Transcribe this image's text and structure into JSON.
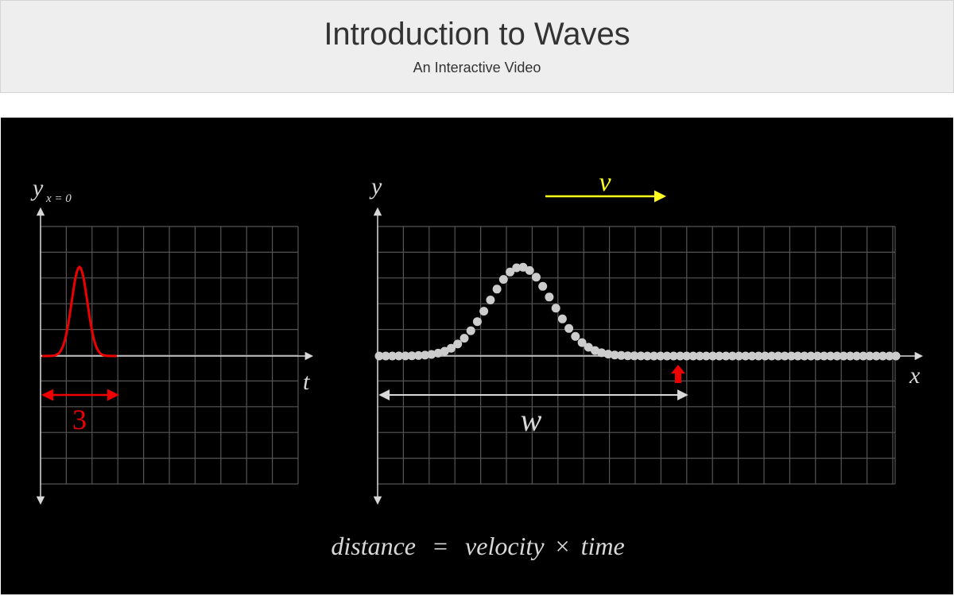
{
  "header": {
    "title": "Introduction to Waves",
    "subtitle": "An Interactive Video"
  },
  "left_plot": {
    "y_label": "y",
    "y_subscript": "x = 0",
    "x_label": "t",
    "width_label": "3",
    "pulse_color": "#ee0000"
  },
  "right_plot": {
    "y_label": "y",
    "x_label": "x",
    "velocity_label": "v",
    "velocity_color": "#ffff22",
    "width_label": "w",
    "marker_color": "#ee0000",
    "bead_color": "#cccccc"
  },
  "equation": {
    "lhs": "distance",
    "eq": "=",
    "rhs_a": "velocity",
    "times": "×",
    "rhs_b": "time"
  },
  "colors": {
    "stage_bg": "#000000",
    "grid": "#555555",
    "axis": "#d8d8d8",
    "header_bg": "#eeeeee"
  }
}
